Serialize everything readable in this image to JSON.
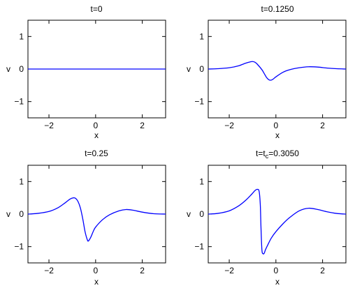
{
  "figure": {
    "curve_color": "#0000ff",
    "axes_color": "#000000",
    "background": "#ffffff"
  },
  "chart_data": [
    {
      "type": "line",
      "title": "t=0",
      "xlabel": "x",
      "ylabel": "v",
      "xlim": [
        -2.9,
        3
      ],
      "ylim": [
        -1.5,
        1.5
      ],
      "xticks": [
        -2,
        0,
        2
      ],
      "yticks": [
        -1,
        0,
        1
      ],
      "grid": false,
      "series": [
        {
          "x": [
            -2.9,
            -2,
            -1,
            0,
            1,
            2,
            3
          ],
          "y": [
            0,
            0,
            0,
            0,
            0,
            0,
            0
          ]
        }
      ]
    },
    {
      "type": "line",
      "title": "t=0.1250",
      "xlabel": "x",
      "ylabel": "v",
      "xlim": [
        -2.9,
        3
      ],
      "ylim": [
        -1.5,
        1.5
      ],
      "xticks": [
        -2,
        0,
        2
      ],
      "yticks": [
        -1,
        0,
        1
      ],
      "grid": false,
      "series": [
        {
          "x": [
            -2.9,
            -2.5,
            -2.0,
            -1.6,
            -1.3,
            -1.1,
            -1.0,
            -0.9,
            -0.8,
            -0.6,
            -0.5,
            -0.4,
            -0.3,
            -0.2,
            -0.1,
            0.0,
            0.3,
            0.6,
            1.0,
            1.4,
            1.8,
            2.2,
            2.6,
            3.0
          ],
          "y": [
            0.0,
            0.01,
            0.04,
            0.1,
            0.18,
            0.22,
            0.23,
            0.21,
            0.15,
            -0.02,
            -0.14,
            -0.26,
            -0.33,
            -0.34,
            -0.3,
            -0.24,
            -0.1,
            -0.02,
            0.04,
            0.07,
            0.06,
            0.03,
            0.01,
            0.0
          ]
        }
      ]
    },
    {
      "type": "line",
      "title": "t=0.25",
      "xlabel": "x",
      "ylabel": "v",
      "xlim": [
        -2.9,
        3
      ],
      "ylim": [
        -1.5,
        1.5
      ],
      "xticks": [
        -2,
        0,
        2
      ],
      "yticks": [
        -1,
        0,
        1
      ],
      "grid": false,
      "series": [
        {
          "x": [
            -2.9,
            -2.5,
            -2.0,
            -1.6,
            -1.3,
            -1.1,
            -0.95,
            -0.85,
            -0.75,
            -0.65,
            -0.55,
            -0.45,
            -0.35,
            -0.3,
            -0.2,
            -0.1,
            0.0,
            0.3,
            0.6,
            1.0,
            1.3,
            1.6,
            2.0,
            2.5,
            3.0
          ],
          "y": [
            0.0,
            0.02,
            0.08,
            0.2,
            0.35,
            0.46,
            0.5,
            0.48,
            0.38,
            0.18,
            -0.15,
            -0.55,
            -0.8,
            -0.82,
            -0.7,
            -0.53,
            -0.4,
            -0.17,
            -0.02,
            0.1,
            0.14,
            0.12,
            0.06,
            0.01,
            0.0
          ]
        }
      ]
    },
    {
      "type": "line",
      "title": "t=t_c=0.3050",
      "xlabel": "x",
      "ylabel": "v",
      "xlim": [
        -2.9,
        3
      ],
      "ylim": [
        -1.5,
        1.5
      ],
      "xticks": [
        -2,
        0,
        2
      ],
      "yticks": [
        -1,
        0,
        1
      ],
      "grid": false,
      "series": [
        {
          "x": [
            -2.9,
            -2.5,
            -2.0,
            -1.6,
            -1.3,
            -1.05,
            -0.9,
            -0.8,
            -0.72,
            -0.67,
            -0.64,
            -0.6,
            -0.55,
            -0.5,
            -0.45,
            -0.35,
            -0.2,
            0.0,
            0.3,
            0.6,
            1.0,
            1.4,
            1.8,
            2.2,
            2.6,
            3.0
          ],
          "y": [
            0.0,
            0.02,
            0.1,
            0.25,
            0.42,
            0.6,
            0.72,
            0.76,
            0.7,
            0.3,
            -0.4,
            -1.1,
            -1.22,
            -1.2,
            -1.1,
            -0.95,
            -0.74,
            -0.54,
            -0.3,
            -0.1,
            0.1,
            0.18,
            0.14,
            0.07,
            0.02,
            0.0
          ]
        }
      ]
    }
  ]
}
